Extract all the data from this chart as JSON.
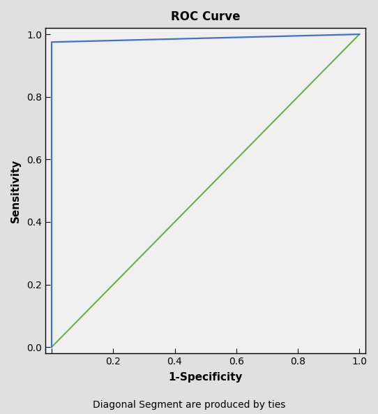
{
  "title": "ROC Curve",
  "xlabel": "1-Specificity",
  "ylabel": "Sensitivity",
  "footnote": "Diagonal Segment are produced by ties",
  "roc_curve": {
    "x": [
      0.0,
      0.0,
      1.0
    ],
    "y": [
      0.0,
      0.975,
      1.0
    ],
    "color": "#4472C4",
    "linewidth": 1.6
  },
  "diagonal": {
    "x": [
      0.0,
      1.0
    ],
    "y": [
      0.0,
      1.0
    ],
    "color": "#70AD47",
    "linewidth": 1.5
  },
  "xlim": [
    -0.02,
    1.02
  ],
  "ylim": [
    -0.02,
    1.02
  ],
  "x_ticks": [
    0.0,
    0.2,
    0.4,
    0.6,
    0.8,
    1.0
  ],
  "y_ticks": [
    0.0,
    0.2,
    0.4,
    0.6,
    0.8,
    1.0
  ],
  "x_tick_labels": [
    "",
    "0.2",
    "0.4",
    "0.6",
    "0.8",
    "1.0"
  ],
  "y_tick_labels": [
    "0.0",
    "0.2",
    "0.4",
    "0.6",
    "0.8",
    "1.0"
  ],
  "figure_bg_color": "#E0E0E0",
  "plot_bg_color": "#F0F0F0",
  "spine_color": "#000000",
  "title_fontsize": 12,
  "label_fontsize": 11,
  "tick_fontsize": 10,
  "footnote_fontsize": 10
}
